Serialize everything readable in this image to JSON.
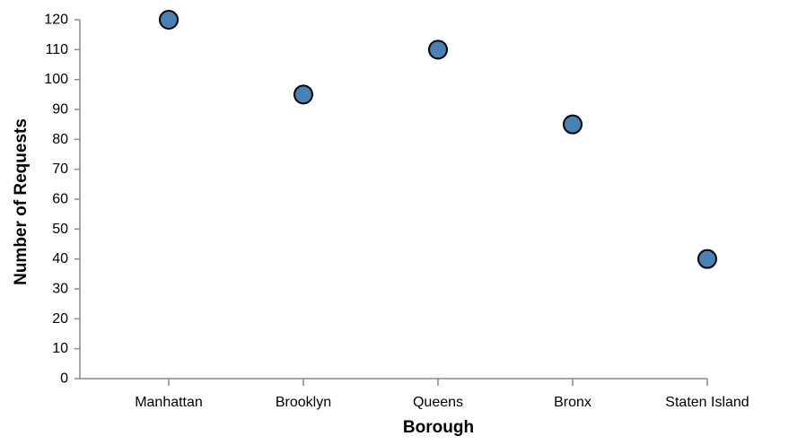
{
  "chart_data": {
    "type": "scatter",
    "title": "",
    "xlabel": "Borough",
    "ylabel": "Number of Requests",
    "categories": [
      "Manhattan",
      "Brooklyn",
      "Queens",
      "Bronx",
      "Staten Island"
    ],
    "values": [
      120,
      95,
      110,
      85,
      40
    ],
    "ylim": [
      0,
      120
    ],
    "yticks": [
      0,
      10,
      20,
      30,
      40,
      50,
      60,
      70,
      80,
      90,
      100,
      110,
      120
    ],
    "grid": false,
    "legend": "none",
    "colors": {
      "point_fill": "#4682b4",
      "point_stroke": "#000000",
      "axis": "#888888",
      "text": "#000000"
    }
  }
}
